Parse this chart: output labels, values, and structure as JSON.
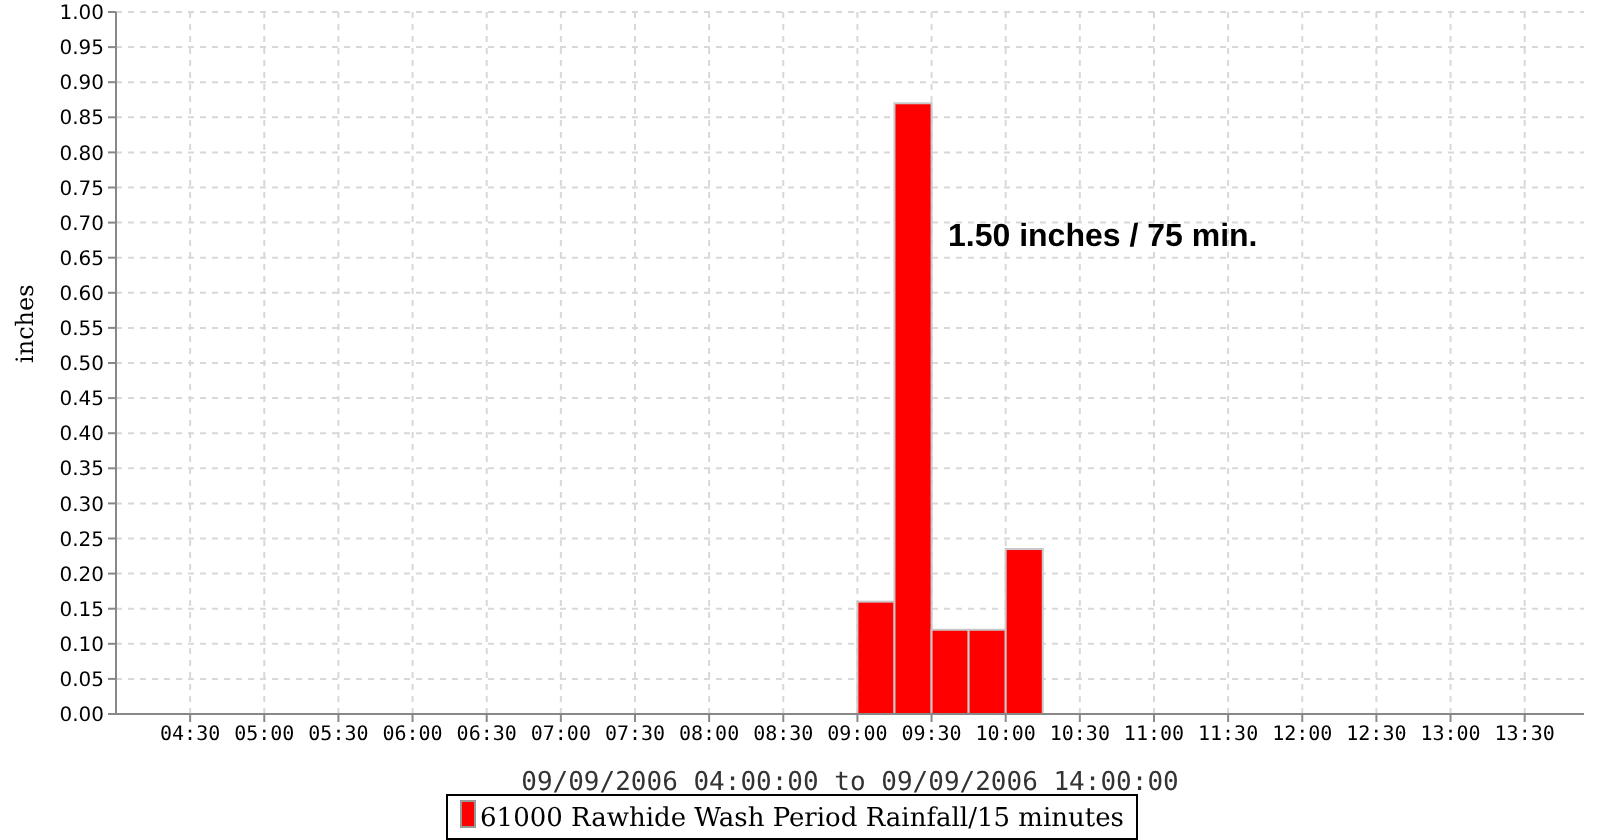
{
  "chart_data": {
    "type": "bar",
    "xlabel": "09/09/2006 04:00:00 to 09/09/2006 14:00:00",
    "ylabel": "inches",
    "x": [
      9.125,
      9.375,
      9.625,
      9.875,
      10.125
    ],
    "series": [
      {
        "name": "61000 Rawhide Wash Period Rainfall/15 minutes",
        "color": "#ff0000",
        "values": [
          0.16,
          0.87,
          0.12,
          0.12,
          0.235
        ]
      }
    ],
    "xlim": [
      4,
      13.9
    ],
    "xticks": [
      {
        "value": 4.5,
        "label": "04:30"
      },
      {
        "value": 5,
        "label": "05:00"
      },
      {
        "value": 5.5,
        "label": "05:30"
      },
      {
        "value": 6,
        "label": "06:00"
      },
      {
        "value": 6.5,
        "label": "06:30"
      },
      {
        "value": 7,
        "label": "07:00"
      },
      {
        "value": 7.5,
        "label": "07:30"
      },
      {
        "value": 8,
        "label": "08:00"
      },
      {
        "value": 8.5,
        "label": "08:30"
      },
      {
        "value": 9,
        "label": "09:00"
      },
      {
        "value": 9.5,
        "label": "09:30"
      },
      {
        "value": 10,
        "label": "10:00"
      },
      {
        "value": 10.5,
        "label": "10:30"
      },
      {
        "value": 11,
        "label": "11:00"
      },
      {
        "value": 11.5,
        "label": "11:30"
      },
      {
        "value": 12,
        "label": "12:00"
      },
      {
        "value": 12.5,
        "label": "12:30"
      },
      {
        "value": 13,
        "label": "13:00"
      },
      {
        "value": 13.5,
        "label": "13:30"
      }
    ],
    "ylim": [
      0,
      1
    ],
    "yticks": [
      {
        "value": 0,
        "label": "0.00"
      },
      {
        "value": 0.05,
        "label": "0.05"
      },
      {
        "value": 0.1,
        "label": "0.10"
      },
      {
        "value": 0.15,
        "label": "0.15"
      },
      {
        "value": 0.2,
        "label": "0.20"
      },
      {
        "value": 0.25,
        "label": "0.25"
      },
      {
        "value": 0.3,
        "label": "0.30"
      },
      {
        "value": 0.35,
        "label": "0.35"
      },
      {
        "value": 0.4,
        "label": "0.40"
      },
      {
        "value": 0.45,
        "label": "0.45"
      },
      {
        "value": 0.5,
        "label": "0.50"
      },
      {
        "value": 0.55,
        "label": "0.55"
      },
      {
        "value": 0.6,
        "label": "0.60"
      },
      {
        "value": 0.65,
        "label": "0.65"
      },
      {
        "value": 0.7,
        "label": "0.70"
      },
      {
        "value": 0.75,
        "label": "0.75"
      },
      {
        "value": 0.8,
        "label": "0.80"
      },
      {
        "value": 0.85,
        "label": "0.85"
      },
      {
        "value": 0.9,
        "label": "0.90"
      },
      {
        "value": 0.95,
        "label": "0.95"
      },
      {
        "value": 1,
        "label": "1.00"
      }
    ],
    "annotations": [
      "1.50 inches / 75 min."
    ],
    "grid": true,
    "legend": "bottom"
  }
}
